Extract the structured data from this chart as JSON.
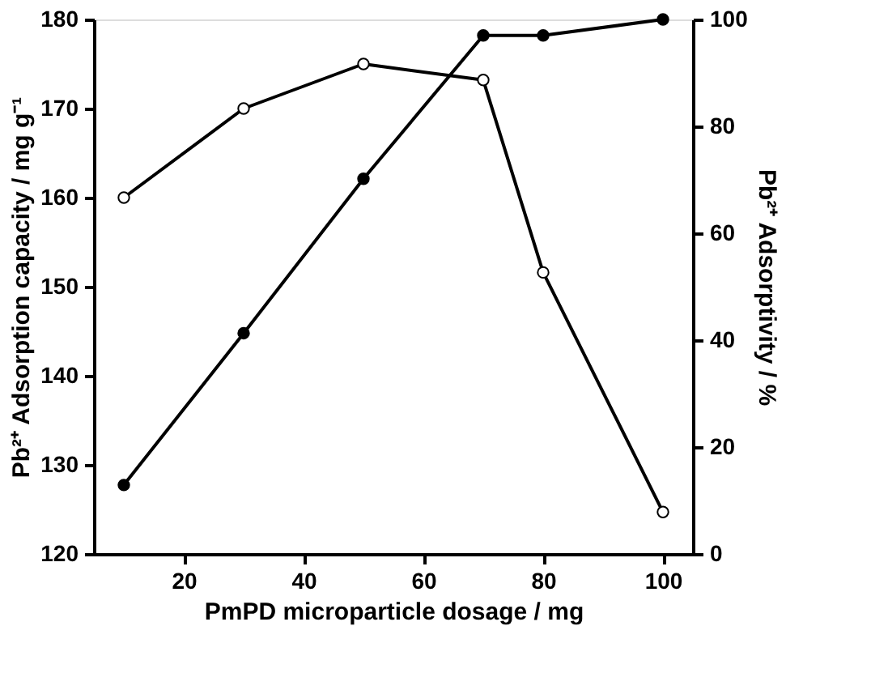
{
  "chart_data": {
    "type": "line",
    "xlabel": "PmPD microparticle dosage / mg",
    "ylabel": "Pb²⁺ Adsorption capacity / mg g⁻¹",
    "y2label": "Pb²⁺ Adsorptivity / %",
    "x": [
      10,
      30,
      50,
      70,
      80,
      100
    ],
    "series": [
      {
        "color": "#000000",
        "values": [
          160,
          170,
          175,
          173.2,
          151.6,
          124.7
        ]
      },
      {
        "color": "#000000",
        "axis": "y2",
        "values": [
          12.9,
          41.3,
          70.2,
          97,
          97,
          100
        ]
      }
    ],
    "xlim": [
      5,
      105
    ],
    "xticks": [
      20,
      40,
      60,
      80,
      100
    ],
    "ylim": [
      120,
      180
    ],
    "yticks": [
      120,
      130,
      140,
      150,
      160,
      170,
      180
    ],
    "y2lim": [
      0,
      100
    ],
    "y2ticks": [
      0,
      20,
      40,
      60,
      80,
      100
    ],
    "marker": "circle",
    "line_style": "solid",
    "grid": false
  }
}
